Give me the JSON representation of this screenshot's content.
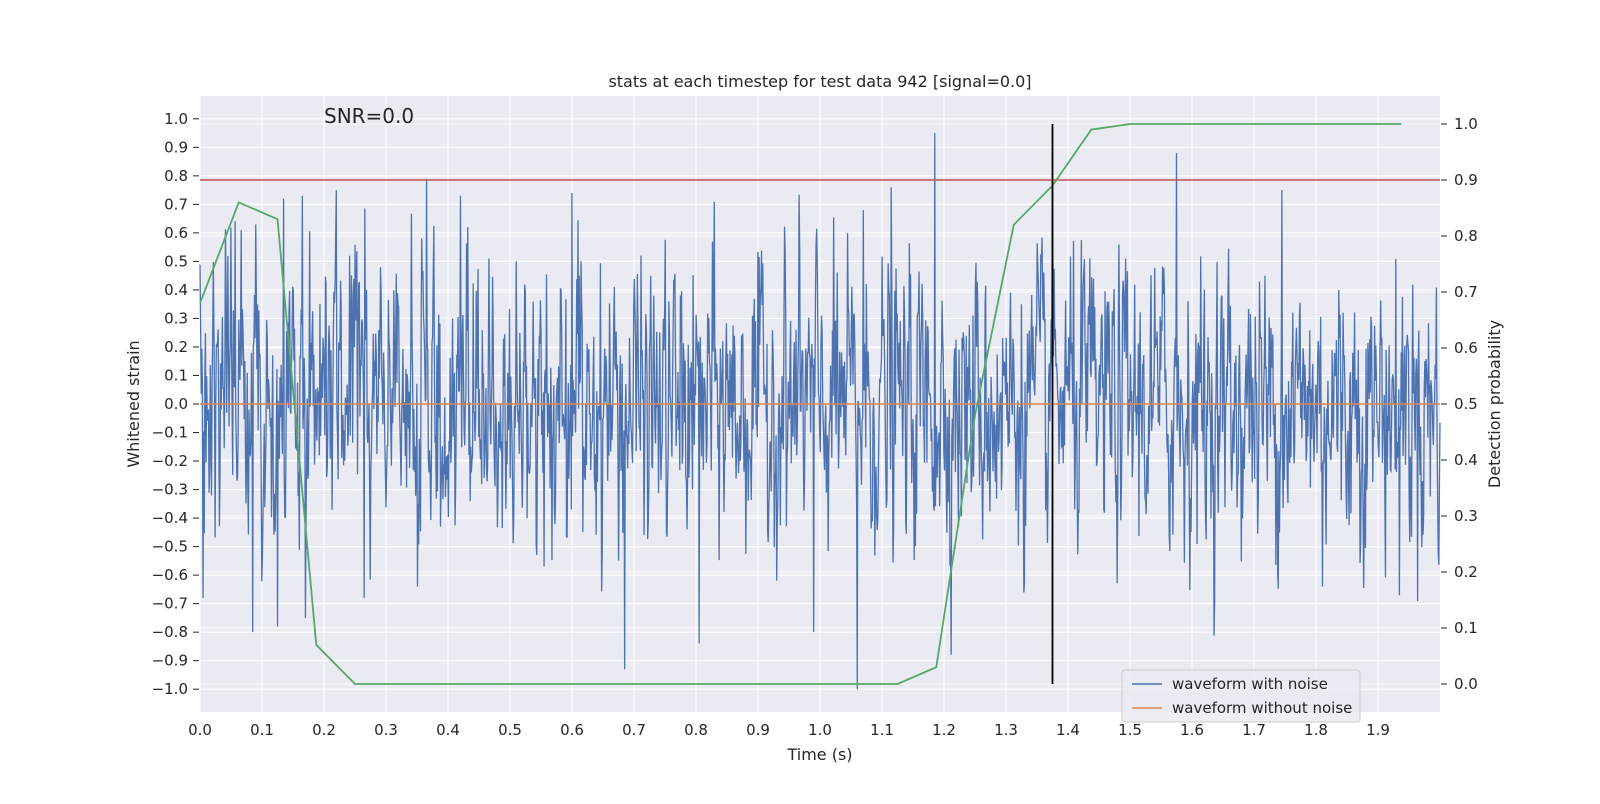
{
  "chart_data": {
    "type": "line",
    "title": "stats at each timestep for test data 942 [signal=0.0]",
    "annotation": "SNR=0.0",
    "xlabel": "Time (s)",
    "ylabel": "Whitened strain",
    "y2label": "Detection probability",
    "xlim": [
      0.0,
      2.0
    ],
    "ylim": [
      -1.08,
      1.08
    ],
    "y2lim": [
      -0.05,
      1.05
    ],
    "grid": true,
    "legend_position": "lower-right",
    "x_ticks": [
      0.0,
      0.1,
      0.2,
      0.3,
      0.4,
      0.5,
      0.6,
      0.7,
      0.8,
      0.9,
      1.0,
      1.1,
      1.2,
      1.3,
      1.4,
      1.5,
      1.6,
      1.7,
      1.8,
      1.9
    ],
    "x_tick_labels": [
      "0.0",
      "0.1",
      "0.2",
      "0.3",
      "0.4",
      "0.5",
      "0.6",
      "0.7",
      "0.8",
      "0.9",
      "1.0",
      "1.1",
      "1.2",
      "1.3",
      "1.4",
      "1.5",
      "1.6",
      "1.7",
      "1.8",
      "1.9"
    ],
    "y_ticks": [
      1.0,
      0.9,
      0.8,
      0.7,
      0.6,
      0.5,
      0.4,
      0.3,
      0.2,
      0.1,
      0.0,
      -0.1,
      -0.2,
      -0.3,
      -0.4,
      -0.5,
      -0.6,
      -0.7,
      -0.8,
      -0.9,
      -1.0
    ],
    "y_tick_labels": [
      "1.0",
      "0.9",
      "0.8",
      "0.7",
      "0.6",
      "0.5",
      "0.4",
      "0.3",
      "0.2",
      "0.1",
      "0.0",
      "−0.1",
      "−0.2",
      "−0.3",
      "−0.4",
      "−0.5",
      "−0.6",
      "−0.7",
      "−0.8",
      "−0.9",
      "−1.0"
    ],
    "y2_ticks": [
      1.0,
      0.9,
      0.8,
      0.7,
      0.6,
      0.5,
      0.4,
      0.3,
      0.2,
      0.1,
      0.0
    ],
    "y2_tick_labels": [
      "1.0",
      "0.9",
      "0.8",
      "0.7",
      "0.6",
      "0.5",
      "0.4",
      "0.3",
      "0.2",
      "0.1",
      "0.0"
    ],
    "threshold": {
      "axis": "y2",
      "value": 0.9,
      "color": "#c44e52"
    },
    "detection_time_marker": {
      "x": 1.375,
      "y2_from": 0.0,
      "y2_to": 1.0,
      "color": "#000000"
    },
    "series": [
      {
        "name": "waveform with noise",
        "axis": "y",
        "color": "#4c72b0",
        "in_legend": true,
        "x_start": 0.0,
        "x_end": 2.0,
        "amplitude_range": [
          -1.0,
          0.95
        ],
        "noise_sigma": 0.24,
        "n_points": 2048,
        "spikes": [
          {
            "x": 0.005,
            "y": -0.68
          },
          {
            "x": 0.085,
            "y": -0.8
          },
          {
            "x": 0.09,
            "y": 0.63
          },
          {
            "x": 0.125,
            "y": -0.78
          },
          {
            "x": 0.135,
            "y": 0.72
          },
          {
            "x": 0.165,
            "y": 0.73
          },
          {
            "x": 0.17,
            "y": -0.75
          },
          {
            "x": 0.22,
            "y": 0.75
          },
          {
            "x": 0.265,
            "y": -0.68
          },
          {
            "x": 0.365,
            "y": 0.79
          },
          {
            "x": 0.42,
            "y": 0.73
          },
          {
            "x": 0.6,
            "y": 0.74
          },
          {
            "x": 0.685,
            "y": -0.93
          },
          {
            "x": 0.805,
            "y": -0.84
          },
          {
            "x": 0.99,
            "y": -0.8
          },
          {
            "x": 1.06,
            "y": -1.0
          },
          {
            "x": 1.07,
            "y": 0.68
          },
          {
            "x": 1.115,
            "y": 0.76
          },
          {
            "x": 1.185,
            "y": 0.95
          },
          {
            "x": 1.375,
            "y": 0.81
          },
          {
            "x": 1.575,
            "y": 0.88
          },
          {
            "x": 1.745,
            "y": 0.75
          },
          {
            "x": 1.81,
            "y": -0.64
          },
          {
            "x": 1.935,
            "y": -0.67
          }
        ]
      },
      {
        "name": "waveform without noise",
        "axis": "y",
        "color": "#dd8452",
        "in_legend": true,
        "x": [
          0.0,
          2.0
        ],
        "y": [
          0.0,
          0.0
        ]
      },
      {
        "name": "detection probability",
        "axis": "y2",
        "color": "#55a868",
        "in_legend": false,
        "x": [
          0.0,
          0.0625,
          0.125,
          0.1875,
          0.25,
          0.3125,
          0.375,
          0.4375,
          0.5,
          0.5625,
          0.625,
          0.6875,
          0.75,
          0.8125,
          0.875,
          0.9375,
          1.0,
          1.0625,
          1.125,
          1.1875,
          1.25,
          1.3125,
          1.375,
          1.4375,
          1.5,
          1.5625,
          1.625,
          1.6875,
          1.75,
          1.8125,
          1.875,
          1.9375
        ],
        "y": [
          0.68,
          0.86,
          0.83,
          0.07,
          0.0,
          0.0,
          0.0,
          0.0,
          0.0,
          0.0,
          0.0,
          0.0,
          0.0,
          0.0,
          0.0,
          0.0,
          0.0,
          0.0,
          0.0,
          0.03,
          0.48,
          0.82,
          0.89,
          0.99,
          1.0,
          1.0,
          1.0,
          1.0,
          1.0,
          1.0,
          1.0,
          1.0
        ]
      }
    ]
  }
}
